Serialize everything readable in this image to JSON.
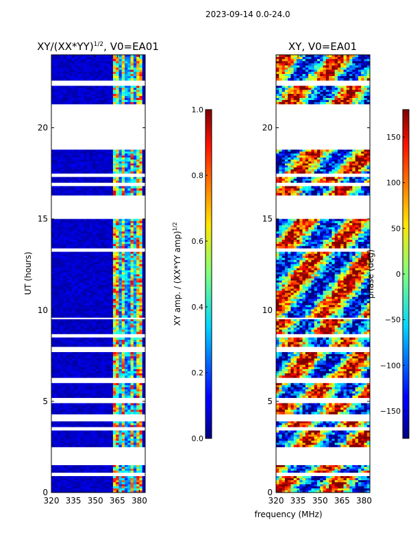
{
  "page_title": "2023-09-14 0.0-24.0",
  "chart_data": [
    {
      "type": "heatmap",
      "title": "XY/(XX*YY)^1/2, V0=EA01",
      "title_main": "XY/(XX*YY)",
      "title_exp": "1/2",
      "title_tail": ", V0=EA01",
      "xlabel": "",
      "ylabel": "UT (hours)",
      "xlim": [
        320,
        384
      ],
      "ylim": [
        0,
        24
      ],
      "xticks": [
        320,
        335,
        350,
        365,
        380
      ],
      "yticks": [
        0,
        5,
        10,
        15,
        20
      ],
      "data_rows_hours": [
        [
          0.0,
          0.9
        ],
        [
          1.1,
          1.5
        ],
        [
          2.5,
          3.4
        ],
        [
          3.6,
          3.9
        ],
        [
          4.3,
          4.9
        ],
        [
          5.2,
          6.0
        ],
        [
          6.3,
          7.7
        ],
        [
          8.0,
          8.5
        ],
        [
          8.7,
          9.5
        ],
        [
          9.6,
          13.2
        ],
        [
          13.4,
          15.0
        ],
        [
          16.3,
          16.8
        ],
        [
          17.0,
          17.3
        ],
        [
          17.5,
          18.8
        ],
        [
          21.3,
          22.3
        ],
        [
          22.6,
          24.0
        ]
      ],
      "colorbar": {
        "label": "XY amp. / (XX*YY amp)^1/2",
        "label_main": "XY amp. / (XX*YY amp)",
        "label_exp": "1/2",
        "range": [
          0.0,
          1.0
        ],
        "ticks": [
          0.0,
          0.2,
          0.4,
          0.6,
          0.8,
          1.0
        ],
        "tick_labels": [
          "0.0",
          "0.2",
          "0.4",
          "0.6",
          "0.8",
          "1.0"
        ]
      }
    },
    {
      "type": "heatmap",
      "title": "XY, V0=EA01",
      "xlabel": "frequency (MHz)",
      "ylabel": "",
      "xlim": [
        320,
        384
      ],
      "ylim": [
        0,
        24
      ],
      "xticks": [
        320,
        335,
        350,
        365,
        380
      ],
      "yticks": [
        0,
        5,
        10,
        15,
        20
      ],
      "colorbar": {
        "label": "phase (deg)",
        "range": [
          -180,
          180
        ],
        "ticks": [
          -150,
          -100,
          -50,
          0,
          50,
          100,
          150
        ],
        "tick_labels": [
          "−150",
          "−100",
          "−50",
          "0",
          "50",
          "100",
          "150"
        ]
      }
    }
  ]
}
